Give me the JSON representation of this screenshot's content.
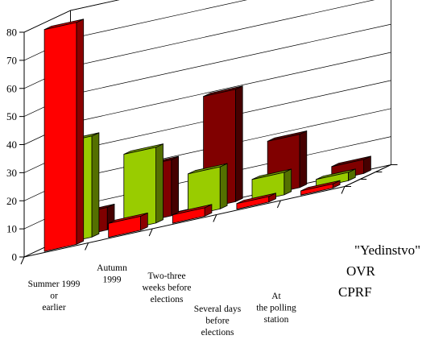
{
  "chart_data": {
    "type": "bar",
    "subtype": "3d-grouped",
    "title": "",
    "xlabel": "",
    "ylabel": "",
    "ylim": [
      0,
      80
    ],
    "yticks": [
      0,
      10,
      20,
      30,
      40,
      50,
      60,
      70,
      80
    ],
    "grid": true,
    "categories": [
      [
        "Summer 1999",
        "or",
        "earlier"
      ],
      [
        "Autumn",
        "1999"
      ],
      [
        "Two-three",
        "weeks before",
        "elections"
      ],
      [
        "Several days",
        "before",
        "elections"
      ],
      [
        "At",
        "the polling",
        "station"
      ]
    ],
    "series": [
      {
        "name": "CPRF",
        "color": "#ff0000",
        "values": [
          79,
          5,
          3,
          2,
          1.5
        ]
      },
      {
        "name": "OVR",
        "color": "#99cc00",
        "values": [
          36,
          27,
          15,
          8,
          3
        ]
      },
      {
        "name": "\"Yedinstvo\"",
        "color": "#800000",
        "values": [
          8,
          20,
          40,
          19,
          5
        ]
      }
    ]
  }
}
